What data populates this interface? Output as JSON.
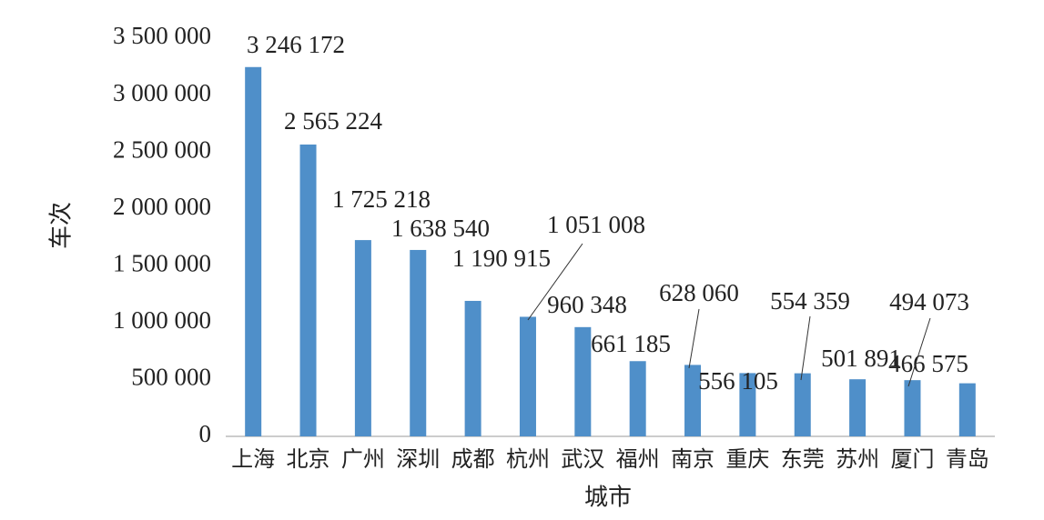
{
  "chart_data": {
    "type": "bar",
    "x_label": "城市",
    "y_label": "车次",
    "categories": [
      "上海",
      "北京",
      "广州",
      "深圳",
      "成都",
      "杭州",
      "武汉",
      "福州",
      "南京",
      "重庆",
      "东莞",
      "苏州",
      "厦门",
      "青岛"
    ],
    "values": [
      3246172,
      2565224,
      1725218,
      1638540,
      1190915,
      1051008,
      960348,
      661185,
      628060,
      556105,
      554359,
      501891,
      494073,
      466575
    ],
    "value_labels": [
      "3 246 172",
      "2 565 224",
      "1 725 218",
      "1 638 540",
      "1 190 915",
      "1 051 008",
      "960 348",
      "661 185",
      "628 060",
      "556 105",
      "554 359",
      "501 891",
      "494 073",
      "466 575"
    ],
    "color": "#4f8fc9",
    "ylim": [
      0,
      3500000
    ],
    "yticks": [
      0,
      {
        "value": 500000,
        "label": "500 000"
      },
      {
        "value": 1000000,
        "label": "1 000 000"
      },
      {
        "value": 1500000,
        "label": "1 500 000"
      },
      {
        "value": 2000000,
        "label": "2 000 000"
      },
      {
        "value": 2500000,
        "label": "2 500 000"
      },
      {
        "value": 3000000,
        "label": "3 000 000"
      },
      {
        "value": 3500000,
        "label": "3 500 000"
      }
    ],
    "grid": false
  }
}
